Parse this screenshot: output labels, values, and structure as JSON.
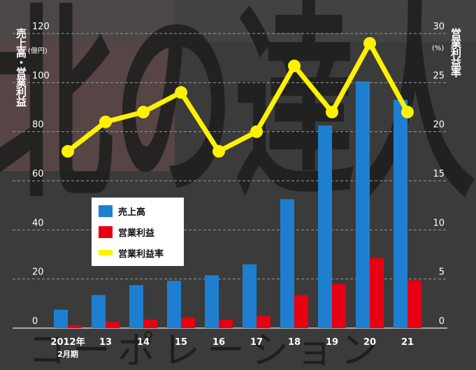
{
  "chart_data": {
    "type": "bar",
    "categories": [
      "2012年\n2月期",
      "13",
      "14",
      "15",
      "16",
      "17",
      "18",
      "19",
      "20",
      "21"
    ],
    "series": [
      {
        "name": "売上高",
        "type": "bar",
        "axis": "left",
        "color": "#1e7fd0",
        "values": [
          7.5,
          13.5,
          17.5,
          19.3,
          21.5,
          26,
          52.5,
          82.5,
          100.5,
          93
        ]
      },
      {
        "name": "営業利益",
        "type": "bar",
        "axis": "left",
        "color": "#e60012",
        "values": [
          1.2,
          2.5,
          3.5,
          4.3,
          3.5,
          5,
          13.5,
          18,
          28.5,
          19.5
        ]
      },
      {
        "name": "営業利益率",
        "type": "line",
        "axis": "right",
        "color": "#fff200",
        "values": [
          18,
          21,
          22,
          24,
          18,
          20,
          26.7,
          22,
          29,
          22
        ]
      }
    ],
    "ylabel_left": "売上高・営業利益",
    "ylabel_right": "営業利益率",
    "yunit_left": "(億円)",
    "yunit_right": "(%)",
    "ylim_left": [
      0,
      120
    ],
    "ylim_right": [
      0,
      30
    ],
    "yticks_left": [
      0,
      20,
      40,
      60,
      80,
      100,
      120
    ],
    "yticks_right": [
      0,
      5,
      10,
      15,
      20,
      25,
      30
    ],
    "grid": true,
    "legend_position": "center-left"
  },
  "background_text": [
    "北の達人",
    "コーポレーション"
  ]
}
